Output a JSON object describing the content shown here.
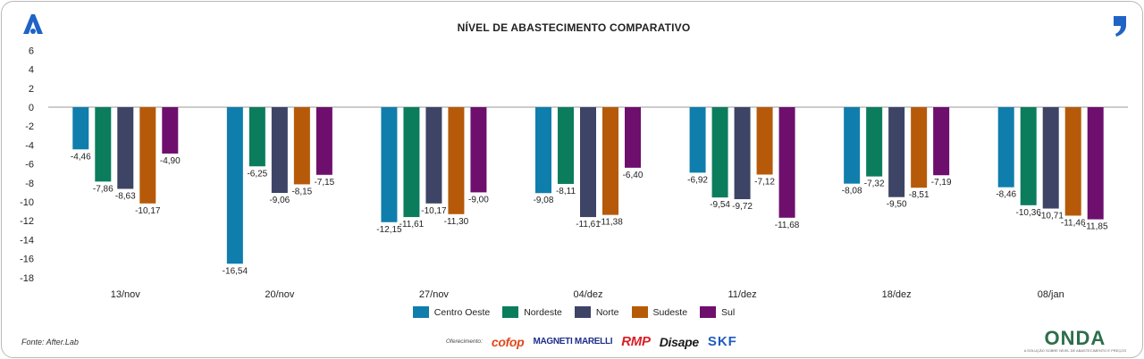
{
  "header": {
    "title": "NÍVEL DE ABASTECIMENTO COMPARATIVO"
  },
  "footer": {
    "source": "Fonte: After.Lab",
    "sponsor_label": "Oferecimento:",
    "sponsors": [
      "cofop",
      "MAGNETI MARELLI",
      "RMP",
      "Disape",
      "SKF"
    ],
    "brand": "ONDA",
    "brand_sub": "A SOLUÇÃO SOBRE NÍVEL DE ABASTECIMENTO E PREÇOS"
  },
  "chart_data": {
    "type": "bar",
    "title": "NÍVEL DE ABASTECIMENTO COMPARATIVO",
    "categories": [
      "13/nov",
      "20/nov",
      "27/nov",
      "04/dez",
      "11/dez",
      "18/dez",
      "08/jan"
    ],
    "ylim": [
      -18,
      6
    ],
    "yticks": [
      6,
      4,
      2,
      0,
      -2,
      -4,
      -6,
      -8,
      -10,
      -12,
      -14,
      -16,
      -18
    ],
    "legend_position": "bottom",
    "series": [
      {
        "name": "Centro Oeste",
        "color": "#0f7eac",
        "values": [
          -4.46,
          -16.54,
          -12.15,
          -9.08,
          -6.92,
          -8.08,
          -8.46
        ],
        "labels": [
          "-4,46",
          "-16,54",
          "-12,15",
          "-9,08",
          "-6,92",
          "-8,08",
          "-8,46"
        ]
      },
      {
        "name": "Nordeste",
        "color": "#0b7d5d",
        "values": [
          -7.86,
          -6.25,
          -11.61,
          -8.11,
          -9.54,
          -7.32,
          -10.36
        ],
        "labels": [
          "-7,86",
          "-6,25",
          "-11,61",
          "-8,11",
          "-9,54",
          "-7,32",
          "-10,36"
        ]
      },
      {
        "name": "Norte",
        "color": "#3d4466",
        "values": [
          -8.63,
          -9.06,
          -10.17,
          -11.61,
          -9.72,
          -9.5,
          -10.71
        ],
        "labels": [
          "-8,63",
          "-9,06",
          "-10,17",
          "-11,61",
          "-9,72",
          "-9,50",
          "-10,71"
        ]
      },
      {
        "name": "Sudeste",
        "color": "#b65a0a",
        "values": [
          -10.17,
          -8.15,
          -11.3,
          -11.38,
          -7.12,
          -8.51,
          -11.46
        ],
        "labels": [
          "-10,17",
          "-8,15",
          "-11,30",
          "-11,38",
          "-7,12",
          "-8,51",
          "-11,46"
        ]
      },
      {
        "name": "Sul",
        "color": "#6e0f6e",
        "values": [
          -4.9,
          -7.15,
          -9.0,
          -6.4,
          -11.68,
          -7.19,
          -11.85
        ],
        "labels": [
          "-4,90",
          "-7,15",
          "-9,00",
          "-6,40",
          "-11,68",
          "-7,19",
          "-11,85"
        ]
      }
    ]
  }
}
